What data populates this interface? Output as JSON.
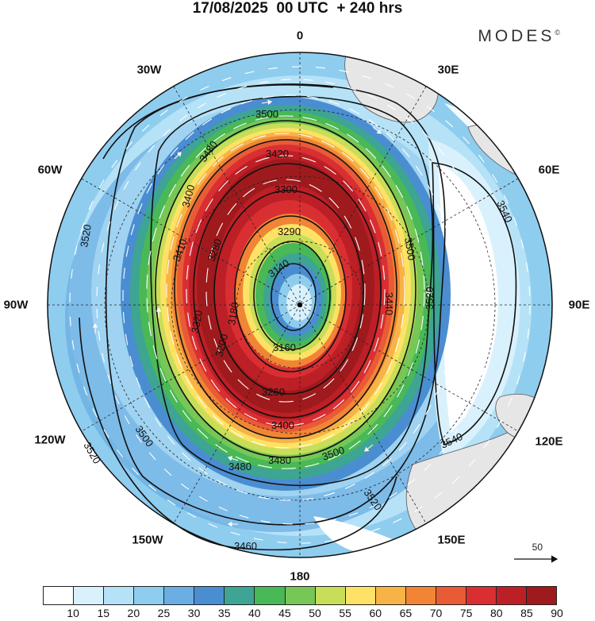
{
  "header": {
    "title": "17/08/2025  00 UTC  + 240 hrs",
    "brand": "MODES",
    "brand_mark": "©"
  },
  "map": {
    "projection": "south-polar-stereographic",
    "longitude_labels": {
      "lon_0": "0",
      "lon_30e": "30E",
      "lon_60e": "60E",
      "lon_90e": "90E",
      "lon_120e": "120E",
      "lon_150e": "150E",
      "lon_180": "180",
      "lon_150w": "150W",
      "lon_120w": "120W",
      "lon_90w": "90W",
      "lon_60w": "60W",
      "lon_30w": "30W"
    },
    "contour_labels": [
      "3500",
      "3480",
      "3420",
      "3300",
      "3290",
      "3140",
      "3160",
      "3180",
      "3520",
      "3540",
      "3500",
      "3440",
      "3410",
      "3280",
      "3260",
      "3400",
      "3480",
      "3480",
      "3500",
      "3520",
      "3520",
      "3500",
      "3540",
      "3520",
      "3460",
      "3400",
      "3320",
      "3200"
    ],
    "reference_vector": "50"
  },
  "colorbar": {
    "colors": [
      "#ffffff",
      "#d9f1fd",
      "#b6e2f7",
      "#8fcdef",
      "#6aaee3",
      "#4a8ed1",
      "#3ea493",
      "#49b856",
      "#76c756",
      "#c8de58",
      "#fde265",
      "#f7b346",
      "#f18535",
      "#e85b35",
      "#d92f32",
      "#bd1f26",
      "#9f1a1d"
    ],
    "labels": [
      "10",
      "15",
      "20",
      "25",
      "30",
      "35",
      "40",
      "45",
      "50",
      "55",
      "60",
      "65",
      "70",
      "75",
      "80",
      "85",
      "90"
    ]
  }
}
